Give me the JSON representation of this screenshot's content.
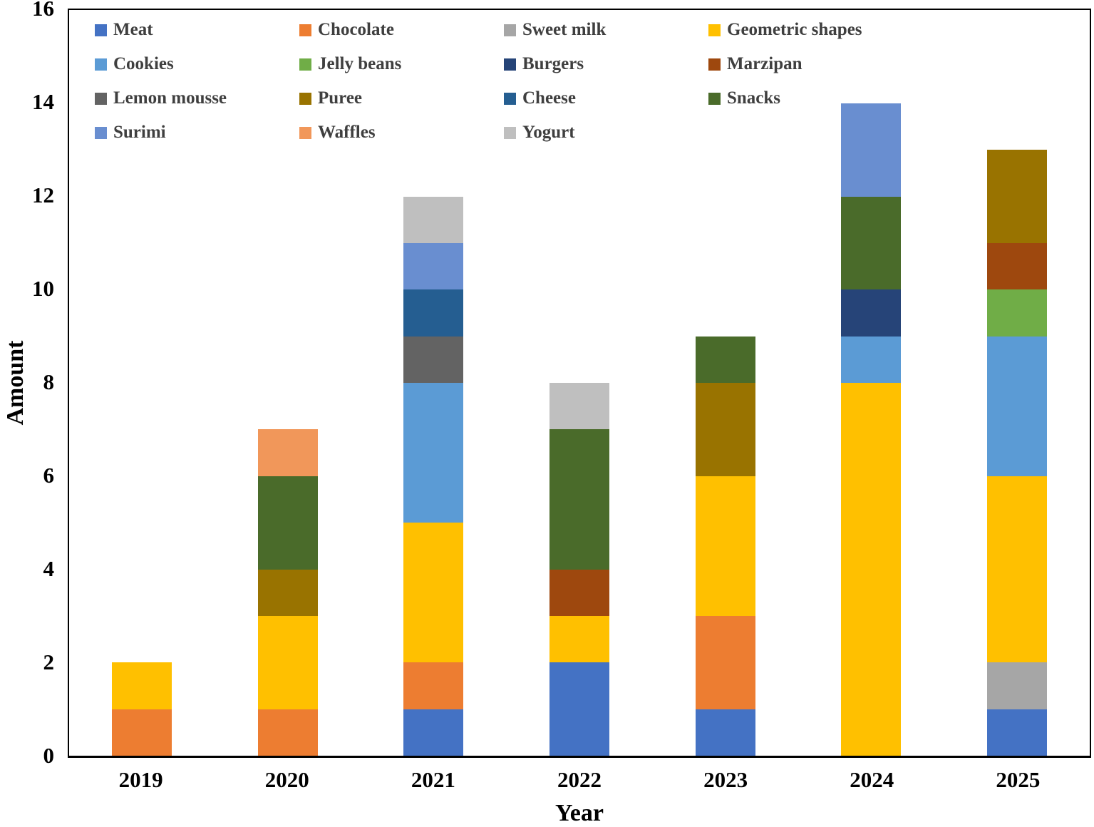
{
  "chart_data": {
    "type": "bar",
    "stacked": true,
    "title": "",
    "xlabel": "Year",
    "ylabel": "Amount",
    "ylim": [
      0,
      16
    ],
    "yticks": [
      0,
      2,
      4,
      6,
      8,
      10,
      12,
      14,
      16
    ],
    "grid": false,
    "legend_position": "inside-top-left",
    "legend_columns": 4,
    "categories": [
      "2019",
      "2020",
      "2021",
      "2022",
      "2023",
      "2024",
      "2025"
    ],
    "series": [
      {
        "name": "Meat",
        "color": "#4472C4",
        "values": [
          0,
          0,
          1,
          2,
          1,
          0,
          1
        ]
      },
      {
        "name": "Chocolate",
        "color": "#ED7D31",
        "values": [
          1,
          1,
          1,
          0,
          2,
          0,
          0
        ]
      },
      {
        "name": "Sweet milk",
        "color": "#A6A6A6",
        "values": [
          0,
          0,
          0,
          0,
          0,
          0,
          1
        ]
      },
      {
        "name": "Geometric shapes",
        "color": "#FFC000",
        "values": [
          1,
          2,
          3,
          1,
          3,
          8,
          4
        ]
      },
      {
        "name": "Cookies",
        "color": "#5B9BD5",
        "values": [
          0,
          0,
          3,
          0,
          0,
          1,
          3
        ]
      },
      {
        "name": "Jelly beans",
        "color": "#70AD47",
        "values": [
          0,
          0,
          0,
          0,
          0,
          0,
          1
        ]
      },
      {
        "name": "Burgers",
        "color": "#264478",
        "values": [
          0,
          0,
          0,
          0,
          0,
          1,
          0
        ]
      },
      {
        "name": "Marzipan",
        "color": "#9E480E",
        "values": [
          0,
          0,
          0,
          1,
          0,
          0,
          1
        ]
      },
      {
        "name": "Lemon mousse",
        "color": "#636363",
        "values": [
          0,
          0,
          1,
          0,
          0,
          0,
          0
        ]
      },
      {
        "name": "Puree",
        "color": "#997300",
        "values": [
          0,
          1,
          0,
          0,
          2,
          0,
          2
        ]
      },
      {
        "name": "Cheese",
        "color": "#255E91",
        "values": [
          0,
          0,
          1,
          0,
          0,
          0,
          0
        ]
      },
      {
        "name": "Snacks",
        "color": "#4A6B2A",
        "values": [
          0,
          2,
          0,
          3,
          1,
          2,
          0
        ]
      },
      {
        "name": "Surimi",
        "color": "#698ED0",
        "values": [
          0,
          0,
          1,
          0,
          0,
          2,
          0
        ]
      },
      {
        "name": "Waffles",
        "color": "#F1975A",
        "values": [
          0,
          1,
          0,
          0,
          0,
          0,
          0
        ]
      },
      {
        "name": "Yogurt",
        "color": "#BFBFBF",
        "values": [
          0,
          0,
          1,
          1,
          0,
          0,
          0
        ]
      }
    ]
  }
}
